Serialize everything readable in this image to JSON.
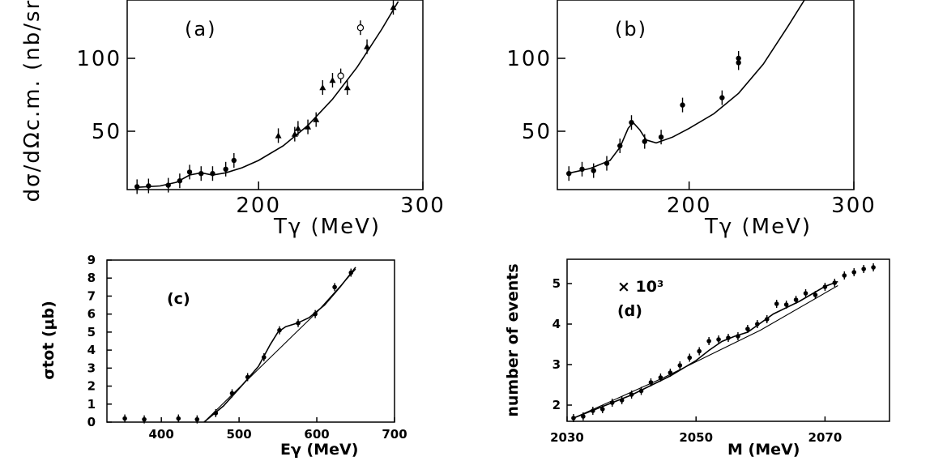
{
  "chart_data": [
    {
      "panel": "(a)",
      "type": "scatter",
      "xlabel": "Tγ (MeV)",
      "ylabel": "dσ/dΩc.m. (nb/sr)",
      "xlim": [
        120,
        300
      ],
      "ylim": [
        10,
        140
      ],
      "xticks": [
        200,
        300
      ],
      "yticks": [
        50,
        100
      ],
      "series": [
        {
          "marker": "filled-circle",
          "points": [
            [
              126,
              12
            ],
            [
              133,
              12.5
            ],
            [
              145,
              13
            ],
            [
              152,
              16
            ],
            [
              158,
              22
            ],
            [
              165,
              21
            ],
            [
              172,
              21
            ],
            [
              180,
              24
            ],
            [
              185,
              30
            ]
          ]
        },
        {
          "marker": "triangle",
          "points": [
            [
              212,
              47
            ],
            [
              222,
              48
            ],
            [
              224,
              52
            ],
            [
              230,
              53
            ],
            [
              235,
              58
            ],
            [
              239,
              80
            ],
            [
              245,
              85
            ],
            [
              254,
              80
            ],
            [
              266,
              108
            ],
            [
              282,
              135
            ]
          ]
        },
        {
          "marker": "open-circle",
          "points": [
            [
              250,
              88
            ],
            [
              262,
              121
            ]
          ]
        }
      ],
      "curves": [
        {
          "points": [
            [
              125,
              11.5
            ],
            [
              140,
              12.5
            ],
            [
              150,
              15
            ],
            [
              158,
              20
            ],
            [
              165,
              21.5
            ],
            [
              172,
              20
            ],
            [
              180,
              21.5
            ],
            [
              190,
              25
            ],
            [
              200,
              30
            ],
            [
              215,
              40
            ],
            [
              230,
              54
            ],
            [
              245,
              72
            ],
            [
              260,
              94
            ],
            [
              275,
              120
            ],
            [
              285,
              139
            ]
          ]
        }
      ]
    },
    {
      "panel": "(b)",
      "type": "scatter",
      "xlabel": "Tγ (MeV)",
      "xlim": [
        120,
        300
      ],
      "ylim": [
        10,
        140
      ],
      "xticks": [
        200,
        300
      ],
      "yticks": [
        50,
        100
      ],
      "series": [
        {
          "marker": "filled-circle",
          "points": [
            [
              127,
              21
            ],
            [
              135,
              24
            ],
            [
              142,
              23
            ],
            [
              150,
              28
            ],
            [
              158,
              40
            ],
            [
              165,
              56
            ],
            [
              173,
              43
            ],
            [
              183,
              46
            ],
            [
              196,
              68
            ],
            [
              220,
              73
            ],
            [
              230,
              97
            ],
            [
              230,
              100
            ]
          ]
        }
      ],
      "curves": [
        {
          "points": [
            [
              126,
              21
            ],
            [
              140,
              24.5
            ],
            [
              152,
              30
            ],
            [
              158,
              39
            ],
            [
              163,
              52
            ],
            [
              166,
              56
            ],
            [
              170,
              51
            ],
            [
              174,
              44
            ],
            [
              180,
              42
            ],
            [
              190,
              46
            ],
            [
              200,
              52
            ],
            [
              215,
              62
            ],
            [
              230,
              76
            ],
            [
              245,
              96
            ],
            [
              260,
              122
            ],
            [
              270,
              140
            ]
          ]
        }
      ]
    },
    {
      "panel": "(c)",
      "type": "scatter",
      "xlabel": "Eγ (MeV)",
      "ylabel": "σtot (μb)",
      "xlim": [
        330,
        700
      ],
      "ylim": [
        0,
        9
      ],
      "xticks": [
        400,
        500,
        600,
        700
      ],
      "yticks": [
        0,
        1,
        2,
        3,
        4,
        5,
        6,
        7,
        8,
        9
      ],
      "series": [
        {
          "marker": "filled-circle",
          "points": [
            [
              353,
              0.2
            ],
            [
              378,
              0.15
            ],
            [
              422,
              0.2
            ],
            [
              446,
              0.15
            ],
            [
              470,
              0.5
            ],
            [
              491,
              1.6
            ],
            [
              511,
              2.5
            ],
            [
              532,
              3.6
            ],
            [
              552,
              5.1
            ],
            [
              576,
              5.5
            ],
            [
              598,
              6.0
            ],
            [
              623,
              7.5
            ],
            [
              644,
              8.3
            ]
          ]
        }
      ],
      "curves": [
        {
          "points": [
            [
              455,
              0
            ],
            [
              480,
              0.9
            ],
            [
              505,
              2.1
            ],
            [
              525,
              3.1
            ],
            [
              540,
              4.3
            ],
            [
              550,
              5.0
            ],
            [
              560,
              5.3
            ],
            [
              575,
              5.5
            ],
            [
              590,
              5.8
            ],
            [
              610,
              6.5
            ],
            [
              630,
              7.5
            ],
            [
              650,
              8.6
            ]
          ]
        },
        {
          "points": [
            [
              455,
              0
            ],
            [
              500,
              1.9
            ],
            [
              550,
              4.0
            ],
            [
              600,
              6.1
            ],
            [
              650,
              8.5
            ]
          ]
        }
      ]
    },
    {
      "panel": "(d)",
      "type": "scatter",
      "xlabel": "M (MeV)",
      "ylabel": "number of events",
      "annotation": "× 10³",
      "xlim": [
        2030,
        2080
      ],
      "ylim": [
        1.6,
        5.6
      ],
      "xticks": [
        2030,
        2050,
        2070
      ],
      "yticks": [
        2,
        3,
        4,
        5
      ],
      "series": [
        {
          "marker": "filled-circle",
          "points": [
            [
              2031,
              1.68
            ],
            [
              2032.5,
              1.72
            ],
            [
              2034,
              1.86
            ],
            [
              2035.5,
              1.9
            ],
            [
              2037,
              2.06
            ],
            [
              2038.5,
              2.12
            ],
            [
              2040,
              2.26
            ],
            [
              2041.5,
              2.35
            ],
            [
              2043,
              2.56
            ],
            [
              2044.5,
              2.68
            ],
            [
              2046,
              2.8
            ],
            [
              2047.5,
              2.98
            ],
            [
              2049,
              3.17
            ],
            [
              2050.5,
              3.33
            ],
            [
              2052,
              3.58
            ],
            [
              2053.5,
              3.62
            ],
            [
              2055,
              3.66
            ],
            [
              2056.5,
              3.7
            ],
            [
              2058,
              3.88
            ],
            [
              2059.5,
              4.0
            ],
            [
              2061,
              4.12
            ],
            [
              2062.5,
              4.5
            ],
            [
              2064,
              4.48
            ],
            [
              2065.5,
              4.6
            ],
            [
              2067,
              4.76
            ],
            [
              2068.5,
              4.72
            ],
            [
              2070,
              4.92
            ],
            [
              2071.5,
              5.02
            ],
            [
              2073,
              5.2
            ],
            [
              2074.5,
              5.28
            ],
            [
              2076,
              5.36
            ],
            [
              2077.5,
              5.4
            ]
          ]
        }
      ],
      "curves": [
        {
          "points": [
            [
              2031,
              1.68
            ],
            [
              2040,
              2.25
            ],
            [
              2046,
              2.72
            ],
            [
              2050,
              3.1
            ],
            [
              2052,
              3.35
            ],
            [
              2054,
              3.57
            ],
            [
              2056,
              3.7
            ],
            [
              2058,
              3.8
            ],
            [
              2062,
              4.25
            ],
            [
              2066,
              4.56
            ],
            [
              2070,
              4.93
            ],
            [
              2072,
              5.05
            ]
          ]
        },
        {
          "points": [
            [
              2031,
              1.68
            ],
            [
              2045,
              2.68
            ],
            [
              2060,
              3.85
            ],
            [
              2072,
              4.95
            ]
          ]
        }
      ]
    }
  ],
  "texts": {
    "a_label": "(a)",
    "b_label": "(b)",
    "c_label": "(c)",
    "d_label": "(d)",
    "ab_xlabel": "Tγ (MeV)",
    "ab_ylabel": "dσ/dΩc.m. (nb/sr)",
    "c_xlabel": "Eγ (MeV)",
    "c_ylabel": "σtot (μb)",
    "d_xlabel": "M (MeV)",
    "d_ylabel": "number of events",
    "d_annotation": "× 10³"
  }
}
